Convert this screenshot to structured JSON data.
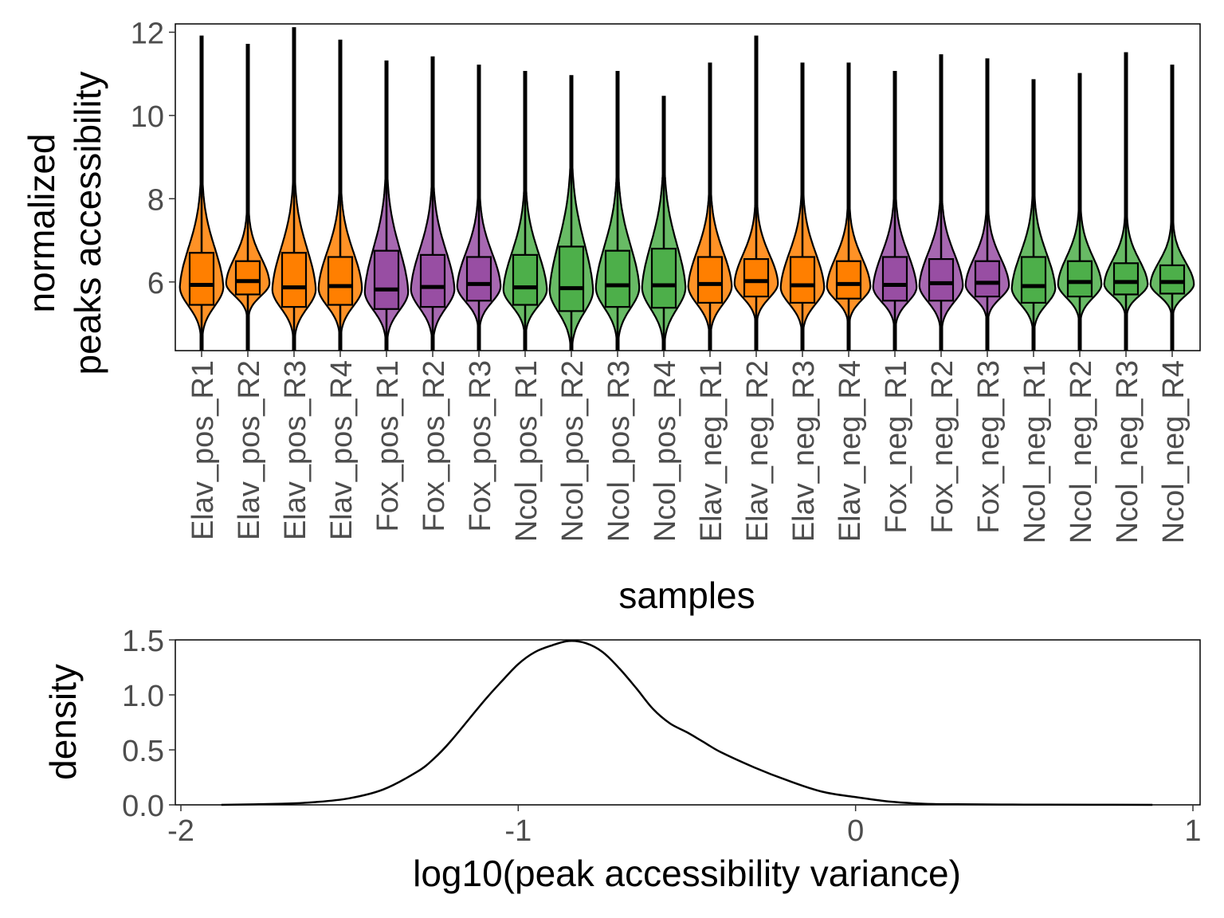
{
  "colors": {
    "Elav": "#FF7F00",
    "Fox": "#984EA3",
    "Ncol": "#4DAF4A",
    "outline": "#000000",
    "tick_text": "#4d4d4d"
  },
  "chart_data": [
    {
      "type": "violin",
      "title": "",
      "xlabel": "samples",
      "ylabel_lines": [
        "normalized",
        "peaks accessibility"
      ],
      "ylim": [
        4.35,
        12.2
      ],
      "yticks": [
        6,
        8,
        10,
        12
      ],
      "ytick_labels": [
        "6",
        "8",
        "10",
        "12"
      ],
      "grid": false,
      "legend": "none",
      "categories": [
        "Elav_pos_R1",
        "Elav_pos_R2",
        "Elav_pos_R3",
        "Elav_pos_R4",
        "Fox_pos_R1",
        "Fox_pos_R2",
        "Fox_pos_R3",
        "Ncol_pos_R1",
        "Ncol_pos_R2",
        "Ncol_pos_R3",
        "Ncol_pos_R4",
        "Elav_neg_R1",
        "Elav_neg_R2",
        "Elav_neg_R3",
        "Elav_neg_R4",
        "Fox_neg_R1",
        "Fox_neg_R2",
        "Fox_neg_R3",
        "Ncol_neg_R1",
        "Ncol_neg_R2",
        "Ncol_neg_R3",
        "Ncol_neg_R4"
      ],
      "groups": [
        "Elav",
        "Elav",
        "Elav",
        "Elav",
        "Fox",
        "Fox",
        "Fox",
        "Ncol",
        "Ncol",
        "Ncol",
        "Ncol",
        "Elav",
        "Elav",
        "Elav",
        "Elav",
        "Fox",
        "Fox",
        "Fox",
        "Ncol",
        "Ncol",
        "Ncol",
        "Ncol"
      ],
      "max": [
        11.9,
        11.7,
        12.1,
        11.8,
        11.3,
        11.4,
        11.2,
        11.05,
        10.95,
        11.05,
        10.45,
        11.25,
        11.9,
        11.25,
        11.25,
        11.05,
        11.45,
        11.35,
        10.85,
        11.0,
        11.5,
        11.2
      ],
      "q3": [
        6.7,
        6.5,
        6.7,
        6.6,
        6.75,
        6.65,
        6.6,
        6.65,
        6.85,
        6.75,
        6.8,
        6.6,
        6.55,
        6.6,
        6.5,
        6.6,
        6.55,
        6.5,
        6.6,
        6.5,
        6.45,
        6.4
      ],
      "median": [
        5.93,
        6.02,
        5.87,
        5.9,
        5.82,
        5.88,
        5.95,
        5.87,
        5.85,
        5.92,
        5.92,
        5.95,
        6.02,
        5.92,
        5.95,
        5.93,
        5.97,
        5.98,
        5.9,
        6.0,
        6.0,
        6.0
      ],
      "q1": [
        5.45,
        5.7,
        5.4,
        5.45,
        5.35,
        5.4,
        5.55,
        5.45,
        5.3,
        5.4,
        5.38,
        5.5,
        5.65,
        5.5,
        5.6,
        5.55,
        5.55,
        5.65,
        5.5,
        5.65,
        5.7,
        5.72
      ]
    },
    {
      "type": "line",
      "title": "",
      "xlabel": "log10(peak accessibility variance)",
      "ylabel": "density",
      "xlim": [
        -2,
        1
      ],
      "ylim": [
        0,
        1.5
      ],
      "xticks": [
        -2,
        -1,
        0,
        1
      ],
      "xtick_labels": [
        "-2",
        "-1",
        "0",
        "1"
      ],
      "yticks": [
        0,
        0.5,
        1.0,
        1.5
      ],
      "ytick_labels": [
        "0.0",
        "0.5",
        "1.0",
        "1.5"
      ],
      "grid": false,
      "legend": "none",
      "x": [
        -1.88,
        -1.7,
        -1.6,
        -1.5,
        -1.4,
        -1.3,
        -1.25,
        -1.2,
        -1.1,
        -1.05,
        -1.0,
        -0.95,
        -0.9,
        -0.85,
        -0.8,
        -0.75,
        -0.7,
        -0.65,
        -0.6,
        -0.55,
        -0.5,
        -0.45,
        -0.4,
        -0.3,
        -0.2,
        -0.1,
        0.0,
        0.1,
        0.2,
        0.3,
        0.5,
        0.7,
        0.88
      ],
      "y": [
        0.0,
        0.01,
        0.025,
        0.06,
        0.14,
        0.3,
        0.42,
        0.58,
        0.95,
        1.12,
        1.28,
        1.39,
        1.45,
        1.49,
        1.47,
        1.39,
        1.24,
        1.06,
        0.87,
        0.74,
        0.66,
        0.57,
        0.48,
        0.34,
        0.22,
        0.12,
        0.07,
        0.03,
        0.01,
        0.005,
        0.002,
        0.001,
        0.0
      ]
    }
  ]
}
